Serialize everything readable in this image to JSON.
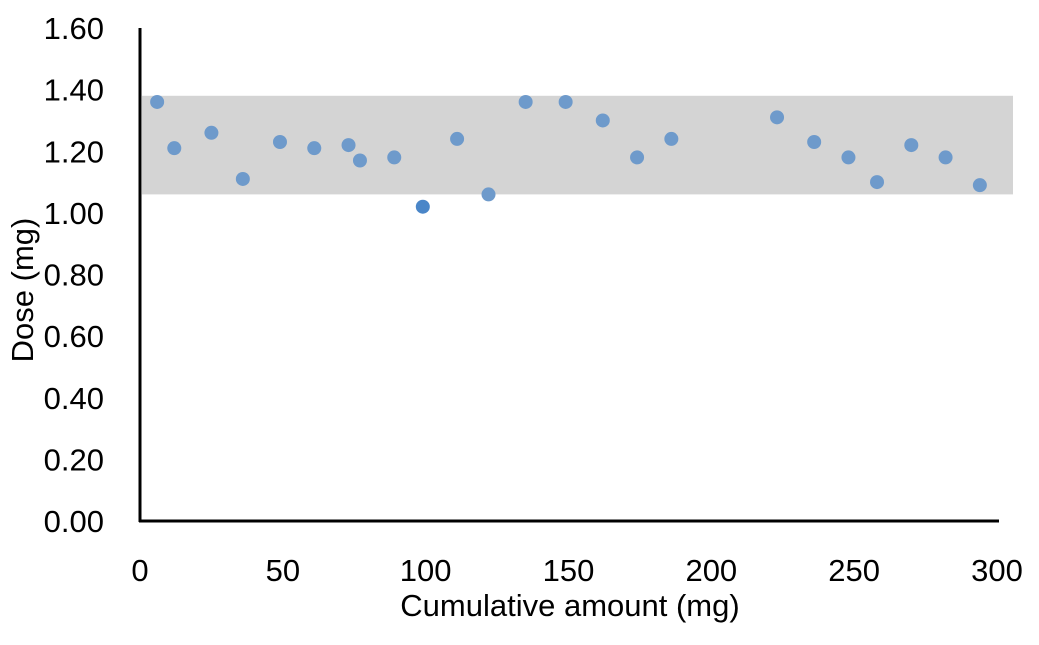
{
  "chart_data": {
    "type": "scatter",
    "xlabel": "Cumulative amount (mg)",
    "ylabel": "Dose (mg)",
    "xlim": [
      0,
      300
    ],
    "ylim": [
      0,
      1.6
    ],
    "x_ticks": [
      "0",
      "50",
      "100",
      "150",
      "200",
      "250",
      "300"
    ],
    "y_ticks": [
      "0.00",
      "0.20",
      "0.40",
      "0.60",
      "0.80",
      "1.00",
      "1.20",
      "1.40",
      "1.60"
    ],
    "grid": false,
    "legend": "none",
    "band": {
      "y_min": 1.06,
      "y_max": 1.38,
      "color": "#d4d4d4"
    },
    "colors": {
      "point": "#6e9acb",
      "highlight_point": "#4a86c8",
      "axis": "#000000"
    },
    "points": [
      {
        "x": 6,
        "y": 1.36
      },
      {
        "x": 12,
        "y": 1.21
      },
      {
        "x": 25,
        "y": 1.26
      },
      {
        "x": 36,
        "y": 1.11
      },
      {
        "x": 49,
        "y": 1.23
      },
      {
        "x": 61,
        "y": 1.21
      },
      {
        "x": 73,
        "y": 1.22
      },
      {
        "x": 77,
        "y": 1.17
      },
      {
        "x": 89,
        "y": 1.18
      },
      {
        "x": 99,
        "y": 1.02,
        "highlight": true
      },
      {
        "x": 111,
        "y": 1.24
      },
      {
        "x": 122,
        "y": 1.06
      },
      {
        "x": 135,
        "y": 1.36
      },
      {
        "x": 149,
        "y": 1.36
      },
      {
        "x": 162,
        "y": 1.3
      },
      {
        "x": 174,
        "y": 1.18
      },
      {
        "x": 186,
        "y": 1.24
      },
      {
        "x": 223,
        "y": 1.31
      },
      {
        "x": 236,
        "y": 1.23
      },
      {
        "x": 248,
        "y": 1.18
      },
      {
        "x": 258,
        "y": 1.1
      },
      {
        "x": 270,
        "y": 1.22
      },
      {
        "x": 282,
        "y": 1.18
      },
      {
        "x": 294,
        "y": 1.09
      }
    ]
  }
}
